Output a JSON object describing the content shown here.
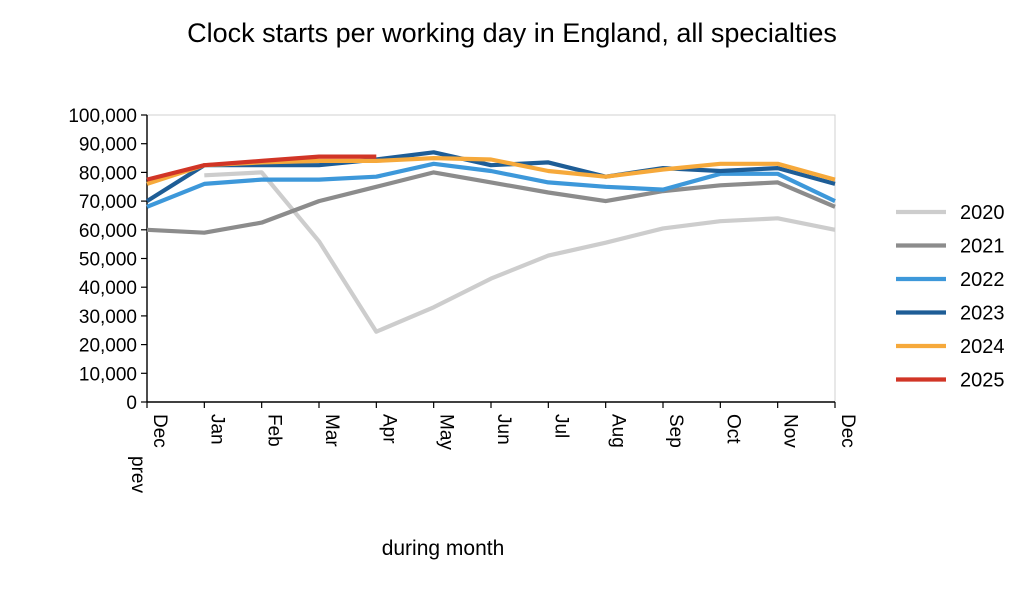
{
  "chart_data": {
    "type": "line",
    "title": "Clock starts per working day in England, all specialties",
    "xlabel": "during month",
    "ylabel": "",
    "ylim": [
      0,
      100000
    ],
    "yticks": [
      "0",
      "10,000",
      "20,000",
      "30,000",
      "40,000",
      "50,000",
      "60,000",
      "70,000",
      "80,000",
      "90,000",
      "100,000"
    ],
    "categories": [
      "Dec prev",
      "Jan",
      "Feb",
      "Mar",
      "Apr",
      "May",
      "Jun",
      "Jul",
      "Aug",
      "Sep",
      "Oct",
      "Nov",
      "Dec"
    ],
    "grid": false,
    "legend_position": "right",
    "series": [
      {
        "name": "2020",
        "color": "#cdcdcd",
        "values": [
          null,
          79000,
          80000,
          56000,
          24500,
          33000,
          43000,
          51000,
          55500,
          60500,
          63000,
          64000,
          60000
        ]
      },
      {
        "name": "2021",
        "color": "#8c8c8c",
        "values": [
          60000,
          59000,
          62500,
          70000,
          75000,
          80000,
          76500,
          73000,
          70000,
          73500,
          75500,
          76500,
          68000
        ]
      },
      {
        "name": "2022",
        "color": "#3d98da",
        "values": [
          68000,
          76000,
          77500,
          77500,
          78500,
          83000,
          80500,
          76500,
          75000,
          74000,
          79500,
          79500,
          70000
        ]
      },
      {
        "name": "2023",
        "color": "#1e5d96",
        "values": [
          70000,
          82500,
          82500,
          82500,
          84500,
          87000,
          82500,
          83500,
          78500,
          81500,
          80500,
          81500,
          76000
        ]
      },
      {
        "name": "2024",
        "color": "#f6a93b",
        "values": [
          76000,
          82500,
          83500,
          84000,
          84000,
          85000,
          84500,
          80500,
          78500,
          81000,
          83000,
          83000,
          77500
        ]
      },
      {
        "name": "2025",
        "color": "#d13526",
        "values": [
          77500,
          82500,
          84000,
          85500,
          85500,
          null,
          null,
          null,
          null,
          null,
          null,
          null,
          null
        ]
      }
    ]
  }
}
